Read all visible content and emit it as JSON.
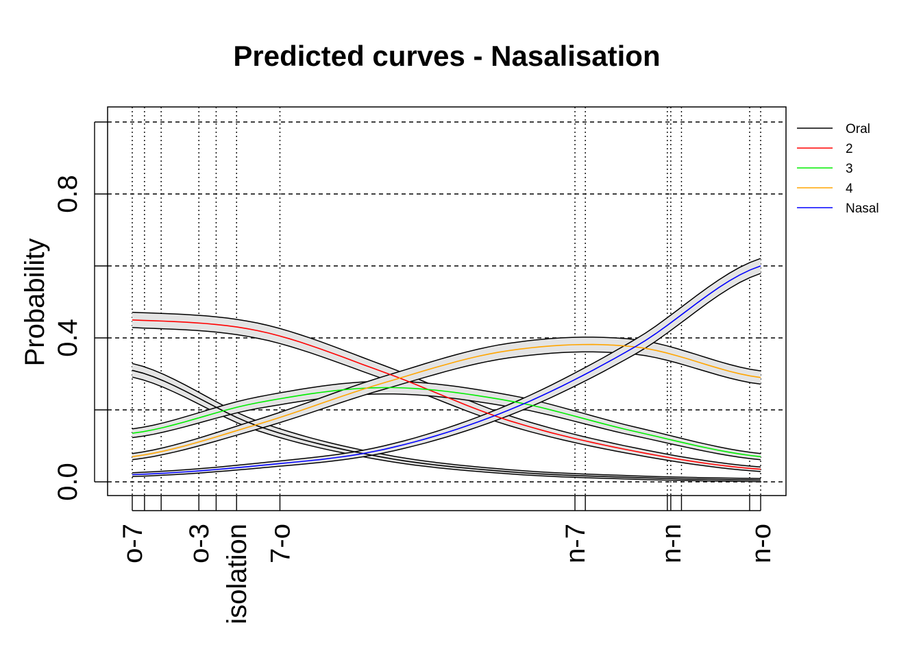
{
  "chart_data": {
    "type": "line",
    "title": "Predicted curves - Nasalisation",
    "xlabel": "",
    "ylabel": "Probability",
    "ylim": [
      0,
      1
    ],
    "yticks": [
      {
        "value": 0.0,
        "label": "0.0"
      },
      {
        "value": 0.2,
        "label": ""
      },
      {
        "value": 0.4,
        "label": "0.4"
      },
      {
        "value": 0.6,
        "label": ""
      },
      {
        "value": 0.8,
        "label": "0.8"
      },
      {
        "value": 1.0,
        "label": ""
      }
    ],
    "xlim": [
      -1.03,
      1.03
    ],
    "xticks": [
      {
        "x": -1.0,
        "label": "o-7"
      },
      {
        "x": -0.961,
        "label": ""
      },
      {
        "x": -0.908,
        "label": ""
      },
      {
        "x": -0.788,
        "label": "o-3"
      },
      {
        "x": -0.733,
        "label": ""
      },
      {
        "x": -0.668,
        "label": "isolation"
      },
      {
        "x": -0.53,
        "label": "7-o"
      },
      {
        "x": 0.409,
        "label": "n-7"
      },
      {
        "x": 0.442,
        "label": ""
      },
      {
        "x": 0.703,
        "label": ""
      },
      {
        "x": 0.714,
        "label": "n-n"
      },
      {
        "x": 0.748,
        "label": ""
      },
      {
        "x": 0.965,
        "label": ""
      },
      {
        "x": 1.0,
        "label": "n-o"
      }
    ],
    "grid": true,
    "legend_position": "right",
    "series": [
      {
        "name": "Oral",
        "color": "#000000",
        "x": [
          -1.0,
          -0.6,
          -0.2,
          0.2,
          0.6,
          1.0
        ],
        "values": [
          0.31,
          0.155,
          0.068,
          0.028,
          0.012,
          0.005
        ]
      },
      {
        "name": "2",
        "color": "#ff0000",
        "x": [
          -1.0,
          -0.6,
          -0.2,
          0.2,
          0.6,
          1.0
        ],
        "values": [
          0.45,
          0.42,
          0.305,
          0.17,
          0.085,
          0.035
        ]
      },
      {
        "name": "3",
        "color": "#00ee00",
        "x": [
          -1.0,
          -0.6,
          -0.2,
          0.2,
          0.6,
          1.0
        ],
        "values": [
          0.135,
          0.22,
          0.262,
          0.225,
          0.14,
          0.07
        ]
      },
      {
        "name": "4",
        "color": "#ffa500",
        "x": [
          -1.0,
          -0.6,
          -0.2,
          0.2,
          0.6,
          1.0
        ],
        "values": [
          0.07,
          0.16,
          0.275,
          0.365,
          0.375,
          0.29
        ]
      },
      {
        "name": "Nasal",
        "color": "#0000ff",
        "x": [
          -1.0,
          -0.6,
          -0.2,
          0.2,
          0.6,
          1.0
        ],
        "values": [
          0.02,
          0.045,
          0.09,
          0.2,
          0.375,
          0.6
        ]
      }
    ]
  }
}
